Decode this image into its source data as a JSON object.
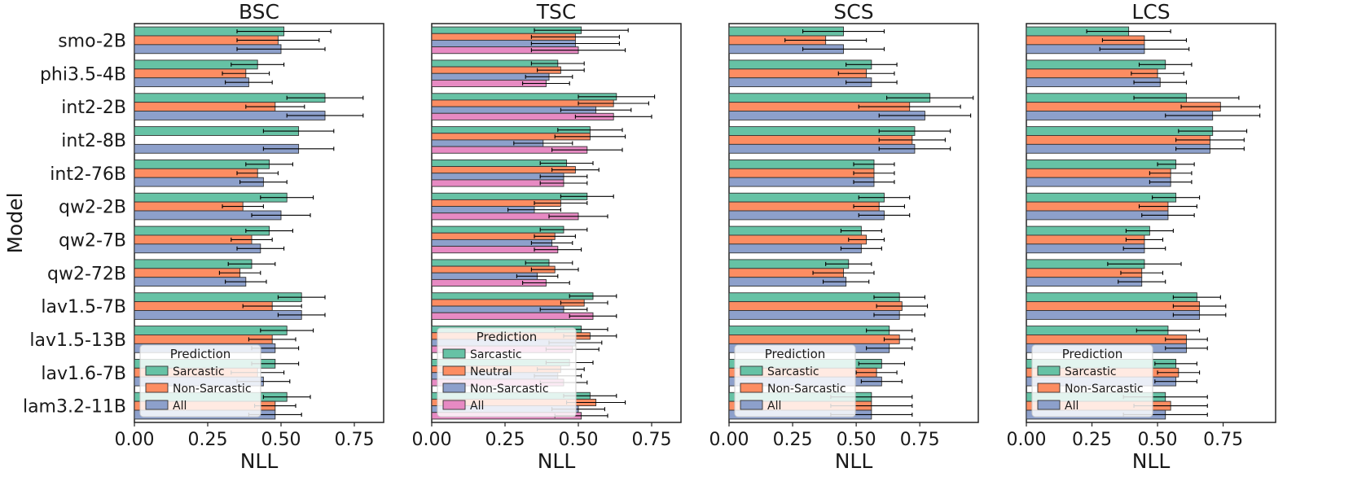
{
  "colors": {
    "Sarcastic": "#66c2a5",
    "Neutral": "#fc8d62",
    "Non-Sarcastic": "#fc8d62",
    "All": "#8da0cb",
    "All_TSC": "#e78ac3",
    "Non-Sarcastic_TSC": "#8da0cb"
  },
  "figure": {
    "ylabel": "Model"
  },
  "chart_data": [
    {
      "type": "bar",
      "orientation": "horizontal",
      "title": "BSC",
      "xlabel": "NLL",
      "ylabel": "Model",
      "xlim": [
        0,
        0.85
      ],
      "xticks": [
        "0.00",
        "0.25",
        "0.50",
        "0.75"
      ],
      "categories": [
        "smo-2B",
        "phi3.5-4B",
        "int2-2B",
        "int2-8B",
        "int2-76B",
        "qw2-2B",
        "qw2-7B",
        "qw2-72B",
        "lav1.5-7B",
        "lav1.5-13B",
        "lav1.6-7B",
        "lam3.2-11B"
      ],
      "legend": {
        "title": "Prediction",
        "location": "lower-left",
        "entries": [
          "Sarcastic",
          "Non-Sarcastic",
          "All"
        ]
      },
      "series": [
        {
          "name": "Sarcastic",
          "colorKey": "Sarcastic",
          "values": [
            0.51,
            0.42,
            0.65,
            0.56,
            0.46,
            0.52,
            0.46,
            0.4,
            0.57,
            0.52,
            0.48,
            0.52
          ],
          "errors": [
            0.16,
            0.09,
            0.13,
            0.12,
            0.08,
            0.09,
            0.08,
            0.08,
            0.08,
            0.09,
            0.08,
            0.08
          ]
        },
        {
          "name": "Non-Sarcastic",
          "colorKey": "Non-Sarcastic",
          "values": [
            0.49,
            0.38,
            0.48,
            null,
            0.42,
            0.37,
            0.4,
            0.36,
            0.47,
            0.47,
            0.42,
            0.48
          ],
          "errors": [
            0.14,
            0.08,
            0.1,
            null,
            0.07,
            0.07,
            0.07,
            0.07,
            0.1,
            0.08,
            0.09,
            0.07
          ]
        },
        {
          "name": "All",
          "colorKey": "All",
          "values": [
            0.5,
            0.39,
            0.65,
            0.56,
            0.44,
            0.5,
            0.43,
            0.38,
            0.57,
            0.48,
            0.44,
            0.48
          ],
          "errors": [
            0.15,
            0.08,
            0.13,
            0.12,
            0.08,
            0.1,
            0.08,
            0.07,
            0.08,
            0.08,
            0.09,
            0.09
          ]
        }
      ]
    },
    {
      "type": "bar",
      "orientation": "horizontal",
      "title": "TSC",
      "xlabel": "NLL",
      "ylabel": "",
      "xlim": [
        0,
        0.85
      ],
      "xticks": [
        "0.00",
        "0.25",
        "0.50",
        "0.75"
      ],
      "categories": [
        "smo-2B",
        "phi3.5-4B",
        "int2-2B",
        "int2-8B",
        "int2-76B",
        "qw2-2B",
        "qw2-7B",
        "qw2-72B",
        "lav1.5-7B",
        "lav1.5-13B",
        "lav1.6-7B",
        "lam3.2-11B"
      ],
      "legend": {
        "title": "Prediction",
        "location": "lower-left",
        "entries": [
          "Sarcastic",
          "Neutral",
          "Non-Sarcastic",
          "All"
        ]
      },
      "series": [
        {
          "name": "Sarcastic",
          "colorKey": "Sarcastic",
          "values": [
            0.51,
            0.43,
            0.63,
            0.54,
            0.46,
            0.53,
            0.45,
            0.4,
            0.55,
            0.51,
            0.47,
            0.54
          ],
          "errors": [
            0.16,
            0.09,
            0.13,
            0.11,
            0.09,
            0.09,
            0.08,
            0.08,
            0.08,
            0.09,
            0.08,
            0.09
          ]
        },
        {
          "name": "Neutral",
          "colorKey": "Neutral",
          "values": [
            0.49,
            0.44,
            0.62,
            0.54,
            0.49,
            0.44,
            0.42,
            0.42,
            0.52,
            0.54,
            0.44,
            0.56
          ],
          "errors": [
            0.15,
            0.08,
            0.12,
            0.12,
            0.08,
            0.09,
            0.07,
            0.08,
            0.08,
            0.09,
            0.08,
            0.1
          ]
        },
        {
          "name": "Non-Sarcastic",
          "colorKey": "Non-Sarcastic_TSC",
          "values": [
            0.49,
            0.4,
            0.56,
            0.38,
            0.45,
            0.35,
            0.41,
            0.36,
            0.45,
            0.49,
            0.43,
            0.5
          ],
          "errors": [
            0.15,
            0.08,
            0.12,
            0.1,
            0.08,
            0.09,
            0.07,
            0.07,
            0.08,
            0.09,
            0.08,
            0.09
          ]
        },
        {
          "name": "All",
          "colorKey": "All_TSC",
          "values": [
            0.5,
            0.39,
            0.62,
            0.53,
            0.45,
            0.5,
            0.43,
            0.39,
            0.55,
            0.48,
            0.45,
            0.51
          ],
          "errors": [
            0.16,
            0.08,
            0.13,
            0.12,
            0.08,
            0.1,
            0.08,
            0.08,
            0.08,
            0.09,
            0.08,
            0.09
          ]
        }
      ]
    },
    {
      "type": "bar",
      "orientation": "horizontal",
      "title": "SCS",
      "xlabel": "NLL",
      "ylabel": "",
      "xlim": [
        0,
        0.98
      ],
      "xticks": [
        "0.00",
        "0.25",
        "0.50",
        "0.75"
      ],
      "categories": [
        "smo-2B",
        "phi3.5-4B",
        "int2-2B",
        "int2-8B",
        "int2-76B",
        "qw2-2B",
        "qw2-7B",
        "qw2-72B",
        "lav1.5-7B",
        "lav1.5-13B",
        "lav1.6-7B",
        "lam3.2-11B"
      ],
      "legend": {
        "title": "Prediction",
        "location": "lower-left",
        "entries": [
          "Sarcastic",
          "Non-Sarcastic",
          "All"
        ]
      },
      "series": [
        {
          "name": "Sarcastic",
          "colorKey": "Sarcastic",
          "values": [
            0.45,
            0.56,
            0.79,
            0.73,
            0.57,
            0.61,
            0.52,
            0.47,
            0.67,
            0.63,
            0.6,
            0.56
          ],
          "errors": [
            0.16,
            0.1,
            0.17,
            0.14,
            0.08,
            0.1,
            0.08,
            0.09,
            0.1,
            0.09,
            0.09,
            0.16
          ]
        },
        {
          "name": "Non-Sarcastic",
          "colorKey": "Non-Sarcastic",
          "values": [
            0.38,
            0.54,
            0.71,
            0.72,
            0.57,
            0.59,
            0.54,
            0.45,
            0.68,
            0.67,
            0.58,
            0.56
          ],
          "errors": [
            0.16,
            0.11,
            0.2,
            0.13,
            0.08,
            0.1,
            0.07,
            0.12,
            0.1,
            0.06,
            0.08,
            0.16
          ]
        },
        {
          "name": "All",
          "colorKey": "All",
          "values": [
            0.45,
            0.56,
            0.77,
            0.73,
            0.57,
            0.61,
            0.52,
            0.46,
            0.67,
            0.63,
            0.6,
            0.56
          ],
          "errors": [
            0.16,
            0.1,
            0.18,
            0.14,
            0.08,
            0.1,
            0.08,
            0.09,
            0.1,
            0.09,
            0.08,
            0.16
          ]
        }
      ]
    },
    {
      "type": "bar",
      "orientation": "horizontal",
      "title": "LCS",
      "xlabel": "NLL",
      "ylabel": "",
      "xlim": [
        0,
        0.95
      ],
      "xticks": [
        "0.00",
        "0.25",
        "0.50",
        "0.75"
      ],
      "categories": [
        "smo-2B",
        "phi3.5-4B",
        "int2-2B",
        "int2-8B",
        "int2-76B",
        "qw2-2B",
        "qw2-7B",
        "qw2-72B",
        "lav1.5-7B",
        "lav1.5-13B",
        "lav1.6-7B",
        "lam3.2-11B"
      ],
      "legend": {
        "title": "Prediction",
        "location": "lower-left",
        "entries": [
          "Sarcastic",
          "Non-Sarcastic",
          "All"
        ]
      },
      "series": [
        {
          "name": "Sarcastic",
          "colorKey": "Sarcastic",
          "values": [
            0.39,
            0.53,
            0.61,
            0.71,
            0.57,
            0.57,
            0.47,
            0.45,
            0.65,
            0.54,
            0.57,
            0.53
          ],
          "errors": [
            0.16,
            0.1,
            0.2,
            0.13,
            0.07,
            0.09,
            0.09,
            0.14,
            0.09,
            0.12,
            0.08,
            0.16
          ]
        },
        {
          "name": "Non-Sarcastic",
          "colorKey": "Non-Sarcastic",
          "values": [
            0.45,
            0.5,
            0.74,
            0.7,
            0.55,
            0.54,
            0.45,
            0.44,
            0.66,
            0.61,
            0.58,
            0.55
          ],
          "errors": [
            0.16,
            0.1,
            0.15,
            0.13,
            0.08,
            0.11,
            0.07,
            0.08,
            0.1,
            0.08,
            0.08,
            0.14
          ]
        },
        {
          "name": "All",
          "colorKey": "All",
          "values": [
            0.45,
            0.51,
            0.71,
            0.7,
            0.55,
            0.54,
            0.45,
            0.44,
            0.66,
            0.61,
            0.57,
            0.53
          ],
          "errors": [
            0.17,
            0.1,
            0.18,
            0.13,
            0.08,
            0.1,
            0.08,
            0.09,
            0.1,
            0.08,
            0.08,
            0.16
          ]
        }
      ]
    }
  ]
}
